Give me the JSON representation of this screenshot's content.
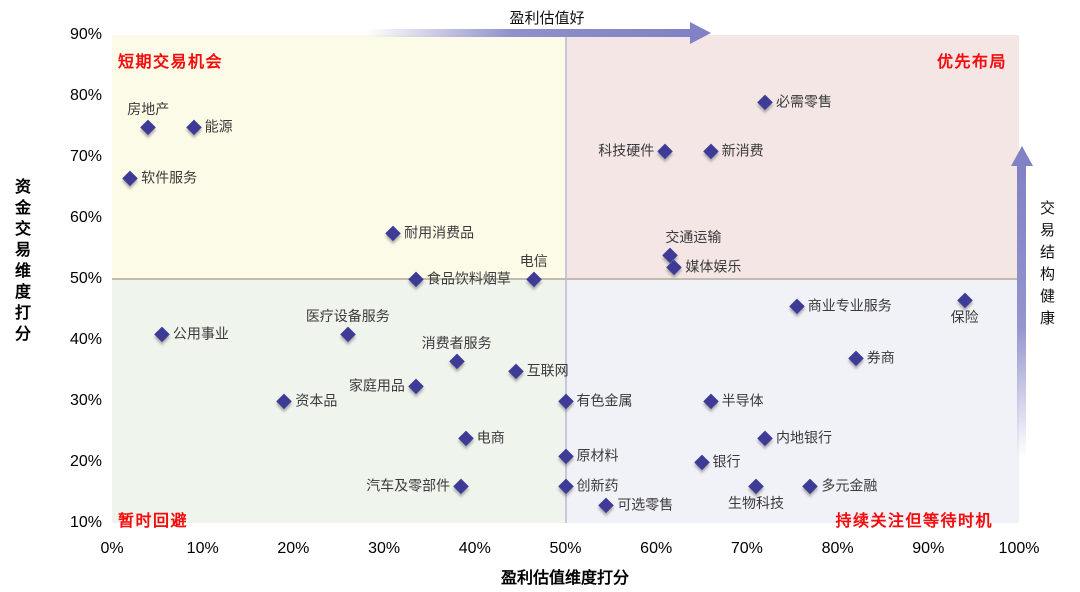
{
  "chart_data": {
    "type": "scatter",
    "title": "",
    "xlabel": "盈利估值维度打分",
    "ylabel": "资金交易维度打分",
    "xlim": [
      0,
      100
    ],
    "ylim": [
      10,
      90
    ],
    "x_ticks": [
      "0%",
      "10%",
      "20%",
      "30%",
      "40%",
      "50%",
      "60%",
      "70%",
      "80%",
      "90%",
      "100%"
    ],
    "y_ticks": [
      "90%",
      "80%",
      "70%",
      "60%",
      "50%",
      "40%",
      "30%",
      "20%",
      "10%"
    ],
    "grid": "quadrant-midlines-only",
    "legend": "none",
    "marker": "diamond",
    "marker_color": "#3d3b96",
    "quadrant_label_color": "#f40b0b",
    "annotations": {
      "top_arrow_label": "盈利估值好",
      "right_arrow_label": "交易结构健康"
    },
    "quadrants": {
      "top_left": {
        "label": "短期交易机会",
        "color": "#fcfbe8"
      },
      "top_right": {
        "label": "优先布局",
        "color": "#f3e6e5"
      },
      "bottom_left": {
        "label": "暂时回避",
        "color": "#eff4ed"
      },
      "bottom_right": {
        "label": "持续关注但等待时机",
        "color": "#f1f1f8"
      }
    },
    "points": [
      {
        "label": "房地产",
        "x": 4,
        "y": 75,
        "label_pos": "above"
      },
      {
        "label": "能源",
        "x": 9,
        "y": 75,
        "label_pos": "right"
      },
      {
        "label": "软件服务",
        "x": 2,
        "y": 66.5,
        "label_pos": "right"
      },
      {
        "label": "耐用消费品",
        "x": 31,
        "y": 57.5,
        "label_pos": "right"
      },
      {
        "label": "食品饮料烟草",
        "x": 33.5,
        "y": 50,
        "label_pos": "right"
      },
      {
        "label": "电信",
        "x": 46.5,
        "y": 50,
        "label_pos": "above"
      },
      {
        "label": "必需零售",
        "x": 72,
        "y": 79,
        "label_pos": "right"
      },
      {
        "label": "科技硬件",
        "x": 61,
        "y": 71,
        "label_pos": "left"
      },
      {
        "label": "新消费",
        "x": 66,
        "y": 71,
        "label_pos": "right"
      },
      {
        "label": "交通运输",
        "x": 61.5,
        "y": 54,
        "label_pos": "above-right"
      },
      {
        "label": "媒体娱乐",
        "x": 62,
        "y": 52,
        "label_pos": "right"
      },
      {
        "label": "公用事业",
        "x": 5.5,
        "y": 41,
        "label_pos": "right"
      },
      {
        "label": "医疗设备服务",
        "x": 26,
        "y": 41,
        "label_pos": "above"
      },
      {
        "label": "消费者服务",
        "x": 38,
        "y": 36.5,
        "label_pos": "above"
      },
      {
        "label": "互联网",
        "x": 44.5,
        "y": 35,
        "label_pos": "right"
      },
      {
        "label": "家庭用品",
        "x": 33.5,
        "y": 32.5,
        "label_pos": "left"
      },
      {
        "label": "资本品",
        "x": 19,
        "y": 30,
        "label_pos": "right"
      },
      {
        "label": "电商",
        "x": 39,
        "y": 24,
        "label_pos": "right"
      },
      {
        "label": "汽车及零部件",
        "x": 38.5,
        "y": 16,
        "label_pos": "left"
      },
      {
        "label": "商业专业服务",
        "x": 75.5,
        "y": 45.5,
        "label_pos": "right"
      },
      {
        "label": "保险",
        "x": 94,
        "y": 46.5,
        "label_pos": "below"
      },
      {
        "label": "券商",
        "x": 82,
        "y": 37,
        "label_pos": "right"
      },
      {
        "label": "有色金属",
        "x": 50,
        "y": 30,
        "label_pos": "right"
      },
      {
        "label": "半导体",
        "x": 66,
        "y": 30,
        "label_pos": "right"
      },
      {
        "label": "内地银行",
        "x": 72,
        "y": 24,
        "label_pos": "right"
      },
      {
        "label": "原材料",
        "x": 50,
        "y": 21,
        "label_pos": "right"
      },
      {
        "label": "银行",
        "x": 65,
        "y": 20,
        "label_pos": "right"
      },
      {
        "label": "创新药",
        "x": 50,
        "y": 16,
        "label_pos": "right"
      },
      {
        "label": "可选零售",
        "x": 54.5,
        "y": 13,
        "label_pos": "right"
      },
      {
        "label": "生物科技",
        "x": 71,
        "y": 16,
        "label_pos": "below"
      },
      {
        "label": "多元金融",
        "x": 77,
        "y": 16,
        "label_pos": "right"
      }
    ]
  }
}
